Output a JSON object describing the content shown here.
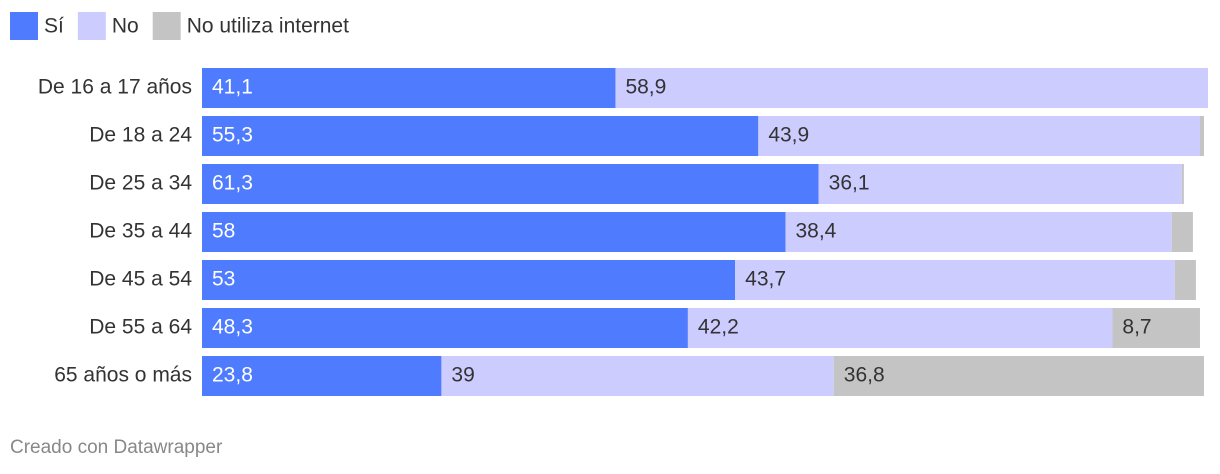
{
  "chart_data": {
    "type": "stacked-bar-horizontal",
    "categories": [
      "De 16 a 17 años",
      "De 18 a 24",
      "De 25 a 34",
      "De 35 a 44",
      "De 45 a 54",
      "De 55 a 64",
      "65 años o más"
    ],
    "series": [
      {
        "name": "Sí",
        "color": "#4f7cff",
        "values": [
          41.1,
          55.3,
          61.3,
          58,
          53,
          48.3,
          23.8
        ],
        "value_labels": [
          "41,1",
          "55,3",
          "61,3",
          "58",
          "53",
          "48,3",
          "23,8"
        ]
      },
      {
        "name": "No",
        "color": "#ccccff",
        "values": [
          58.9,
          43.9,
          36.1,
          38.4,
          43.7,
          42.2,
          39
        ],
        "value_labels": [
          "58,9",
          "43,9",
          "36,1",
          "38,4",
          "43,7",
          "42,2",
          "39"
        ]
      },
      {
        "name": "No utiliza internet",
        "color": "#c4c4c4",
        "values": [
          0,
          0.4,
          0.2,
          2.1,
          2.1,
          8.7,
          36.8
        ],
        "value_labels": [
          null,
          null,
          null,
          null,
          null,
          "8,7",
          "36,8"
        ]
      }
    ],
    "xlim": [
      0,
      100
    ],
    "footer": "Creado con Datawrapper"
  }
}
